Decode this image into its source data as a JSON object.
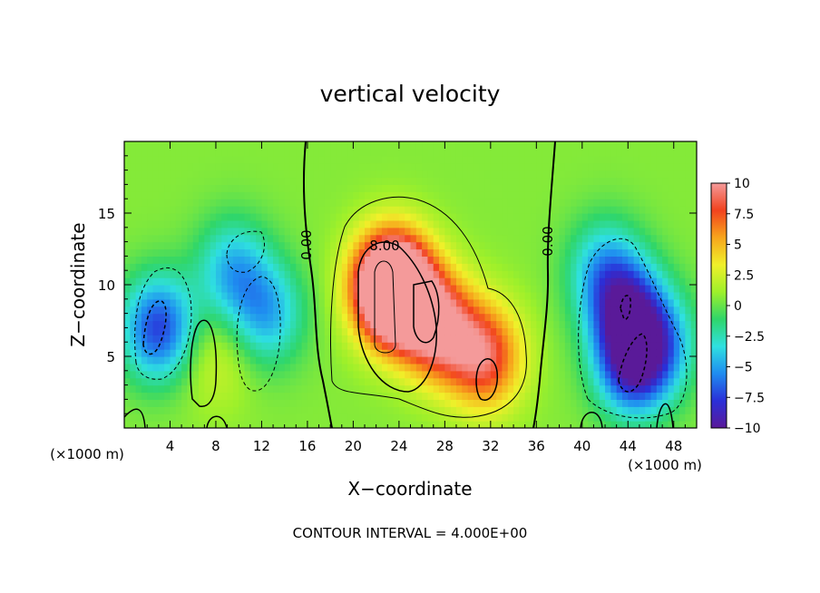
{
  "chart_data": {
    "type": "heatmap",
    "title": "vertical velocity",
    "xlabel": "X−coordinate",
    "ylabel": "Z−coordinate",
    "x_unit_left": "(×1000 m)",
    "x_unit_right": "(×1000 m)",
    "xlim": [
      0,
      50
    ],
    "ylim": [
      0,
      20
    ],
    "xticks": [
      "4",
      "8",
      "12",
      "16",
      "20",
      "24",
      "28",
      "32",
      "36",
      "40",
      "44",
      "48"
    ],
    "xtick_values": [
      4,
      8,
      12,
      16,
      20,
      24,
      28,
      32,
      36,
      40,
      44,
      48
    ],
    "yticks": [
      "5",
      "10",
      "15"
    ],
    "ytick_values": [
      5,
      10,
      15
    ],
    "colorbar": {
      "ticks": [
        "10",
        "7.5",
        "5",
        "2.5",
        "0",
        "−2.5",
        "−5",
        "−7.5",
        "−10"
      ],
      "tick_values": [
        10,
        7.5,
        5,
        2.5,
        0,
        -2.5,
        -5,
        -7.5,
        -10
      ],
      "range": [
        -10,
        10
      ]
    },
    "contour_labels": [
      "0.00",
      "8.00",
      "0.00"
    ],
    "contour_interval_text": "CONTOUR INTERVAL = 4.000E+00",
    "features": [
      {
        "x": 24,
        "z": 9.5,
        "w": 12
      },
      {
        "x": 23,
        "z": 10,
        "w": 10
      },
      {
        "x": 31.5,
        "z": 5,
        "w": 8
      },
      {
        "x": 27.5,
        "z": 7,
        "w": 9
      },
      {
        "x": 8,
        "z": 5,
        "w": 2
      },
      {
        "x": 3,
        "z": 7,
        "w": -8
      },
      {
        "x": 9.5,
        "z": 11,
        "w": -5
      },
      {
        "x": 12.5,
        "z": 8,
        "w": -5
      },
      {
        "x": 44,
        "z": 8,
        "w": -8
      },
      {
        "x": 44.5,
        "z": 4.5,
        "w": -9
      },
      {
        "x": 42,
        "z": 11,
        "w": -5
      },
      {
        "x": 47,
        "z": 6,
        "w": -4
      }
    ],
    "palette": [
      "#5a1a99",
      "#2a2fd8",
      "#1f8cf0",
      "#2fe0e0",
      "#2fd66a",
      "#9ef02a",
      "#f0f02a",
      "#f7a51c",
      "#f2421e",
      "#f49a9a"
    ]
  }
}
